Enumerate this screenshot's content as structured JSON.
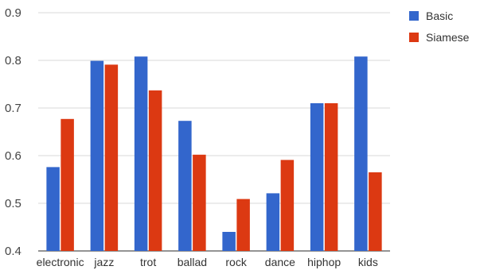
{
  "colors": {
    "basic": "#3366cc",
    "siamese": "#dc3912",
    "grid": "#d9d9d9",
    "axis": "#555555"
  },
  "chart_data": {
    "type": "bar",
    "categories": [
      "electronic",
      "jazz",
      "trot",
      "ballad",
      "rock",
      "dance",
      "hiphop",
      "kids"
    ],
    "series": [
      {
        "name": "Basic",
        "values": [
          0.576,
          0.799,
          0.808,
          0.673,
          0.44,
          0.521,
          0.71,
          0.808
        ]
      },
      {
        "name": "Siamese",
        "values": [
          0.677,
          0.791,
          0.737,
          0.602,
          0.509,
          0.591,
          0.71,
          0.565
        ]
      }
    ],
    "ylim": [
      0.4,
      0.9
    ],
    "yticks": [
      "0.4",
      "0.5",
      "0.6",
      "0.7",
      "0.8",
      "0.9"
    ],
    "title": "",
    "xlabel": "",
    "ylabel": "",
    "grid": true,
    "legend_position": "top-right"
  }
}
